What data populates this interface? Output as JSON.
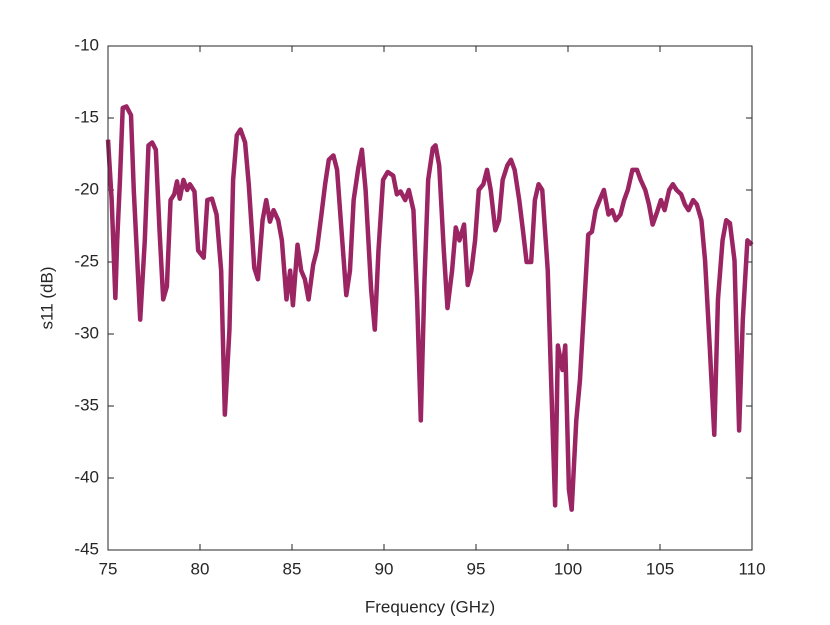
{
  "chart_data": {
    "type": "line",
    "xlabel": "Frequency (GHz)",
    "ylabel": "s11 (dB)",
    "color": "#9b2563",
    "x": [
      75,
      75.2,
      75.4,
      75.5,
      75.65,
      75.8,
      76.0,
      76.25,
      76.4,
      76.75,
      77.0,
      77.2,
      77.4,
      77.6,
      77.8,
      78.0,
      78.2,
      78.4,
      78.6,
      78.75,
      78.9,
      79.1,
      79.3,
      79.45,
      79.7,
      79.9,
      80.2,
      80.4,
      80.65,
      80.9,
      81.15,
      81.35,
      81.6,
      81.8,
      82.0,
      82.2,
      82.45,
      82.65,
      82.95,
      83.15,
      83.4,
      83.6,
      83.8,
      84.0,
      84.25,
      84.45,
      84.7,
      84.9,
      85.05,
      85.3,
      85.5,
      85.7,
      85.9,
      86.15,
      86.35,
      86.6,
      86.8,
      87.0,
      87.25,
      87.45,
      87.65,
      87.95,
      88.15,
      88.35,
      88.6,
      88.8,
      89.0,
      89.3,
      89.5,
      89.7,
      89.95,
      90.2,
      90.5,
      90.7,
      90.9,
      91.15,
      91.35,
      91.6,
      91.8,
      92.0,
      92.2,
      92.4,
      92.65,
      92.8,
      93.0,
      93.25,
      93.45,
      93.7,
      93.9,
      94.1,
      94.35,
      94.55,
      94.75,
      94.95,
      95.15,
      95.4,
      95.6,
      95.8,
      96.05,
      96.25,
      96.45,
      96.7,
      96.9,
      97.1,
      97.35,
      97.55,
      97.75,
      98.0,
      98.2,
      98.4,
      98.6,
      98.9,
      99.15,
      99.3,
      99.45,
      99.7,
      99.85,
      100.05,
      100.2,
      100.45,
      100.65,
      100.9,
      101.1,
      101.3,
      101.5,
      101.75,
      101.95,
      102.2,
      102.4,
      102.6,
      102.85,
      103.05,
      103.25,
      103.5,
      103.75,
      103.95,
      104.2,
      104.4,
      104.6,
      104.85,
      105.05,
      105.25,
      105.5,
      105.7,
      105.9,
      106.15,
      106.35,
      106.55,
      106.8,
      107.0,
      107.25,
      107.45,
      107.7,
      107.95,
      108.15,
      108.4,
      108.6,
      108.8,
      109.05,
      109.3,
      109.5,
      109.75,
      110.0
    ],
    "values": [
      -16.5,
      -20.7,
      -27.5,
      -23.5,
      -19.3,
      -14.3,
      -14.2,
      -14.8,
      -20,
      -29,
      -23.5,
      -16.9,
      -16.7,
      -17.2,
      -22.8,
      -27.6,
      -26.7,
      -20.7,
      -20.3,
      -19.4,
      -20.6,
      -19.3,
      -20,
      -19.6,
      -20.1,
      -24.2,
      -24.7,
      -20.7,
      -20.6,
      -21.7,
      -25.6,
      -35.6,
      -29.7,
      -19.3,
      -16.2,
      -15.8,
      -16.7,
      -19.6,
      -25.4,
      -26.2,
      -22.1,
      -20.7,
      -22.2,
      -21.4,
      -22.1,
      -23.5,
      -27.6,
      -25.6,
      -28,
      -23.8,
      -25.6,
      -26.2,
      -27.6,
      -25.2,
      -24.2,
      -21.7,
      -19.6,
      -17.9,
      -17.6,
      -18.6,
      -22.1,
      -27.3,
      -25.6,
      -20.7,
      -18.5,
      -17.2,
      -20,
      -26.9,
      -29.7,
      -24.2,
      -19.3,
      -18.75,
      -19,
      -20.3,
      -20.1,
      -20.7,
      -20,
      -21.4,
      -27.6,
      -36,
      -26.3,
      -19.3,
      -17.1,
      -16.9,
      -18.3,
      -24.2,
      -28.2,
      -25.6,
      -22.6,
      -23.5,
      -22.4,
      -26.6,
      -25.6,
      -23.5,
      -20,
      -19.6,
      -18.6,
      -20,
      -22.8,
      -22.1,
      -19.3,
      -18.3,
      -17.9,
      -18.6,
      -20.7,
      -22.8,
      -25,
      -25,
      -20.7,
      -19.6,
      -20,
      -25.6,
      -36,
      -41.9,
      -30.8,
      -32.5,
      -30.8,
      -40.8,
      -42.2,
      -36,
      -33.2,
      -27.6,
      -23.1,
      -22.9,
      -21.4,
      -20.6,
      -20,
      -21.7,
      -21.4,
      -22.1,
      -21.7,
      -20.7,
      -20,
      -18.6,
      -18.6,
      -19.3,
      -20,
      -21,
      -22.4,
      -21.5,
      -20.7,
      -21.4,
      -20,
      -19.6,
      -20,
      -20.3,
      -21,
      -21.4,
      -20.7,
      -21,
      -22.1,
      -24.9,
      -30.8,
      -37,
      -27.6,
      -23.5,
      -22.1,
      -22.3,
      -24.9,
      -36.7,
      -29,
      -23.5,
      -23.8
    ],
    "xlim": [
      75,
      110
    ],
    "xticks": [
      75,
      80,
      85,
      90,
      95,
      100,
      105,
      110
    ],
    "ylim": [
      -45,
      -10
    ],
    "yticks": [
      -45,
      -40,
      -35,
      -30,
      -25,
      -20,
      -15,
      -10
    ],
    "grid": false
  }
}
